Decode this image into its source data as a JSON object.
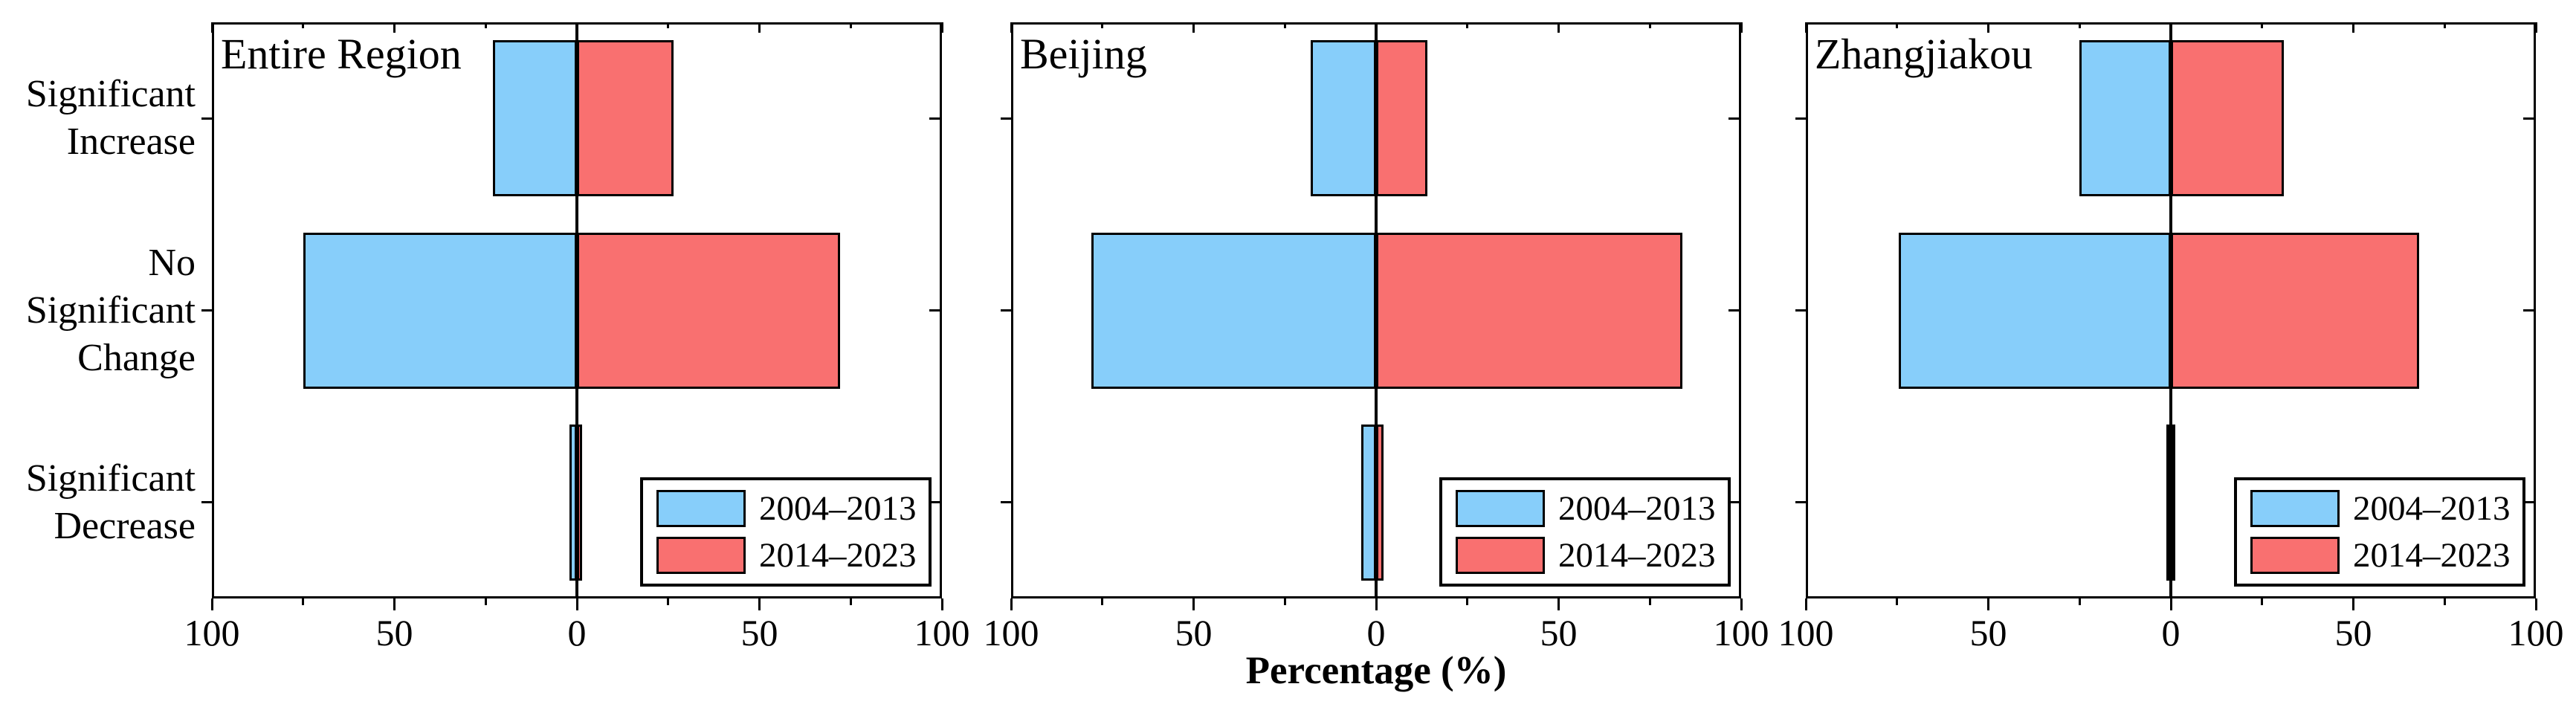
{
  "figure": {
    "background_color": "#FFFFFF"
  },
  "chart_data": {
    "type": "bar",
    "orientation": "horizontal-diverging",
    "title": "",
    "xlabel": "Percentage (%)",
    "ylabel": "",
    "categories": [
      "Significant Increase",
      "No Significant Change",
      "Significant Decrease"
    ],
    "x_axis": {
      "tick_labels": [
        "100",
        "50",
        "0",
        "50",
        "100"
      ],
      "tick_values": [
        -100,
        -50,
        0,
        50,
        100
      ],
      "minor_tick_interval": 25,
      "left_range": 100,
      "right_range": 100,
      "grid": "off"
    },
    "series_meta": [
      {
        "name": "2004–2013",
        "color": "#87CEFA",
        "direction": "left"
      },
      {
        "name": "2014–2023",
        "color": "#F97070",
        "direction": "right"
      }
    ],
    "panels": [
      {
        "title": "Entire Region",
        "series": [
          {
            "name": "2004–2013",
            "values": [
              23,
              75,
              2
            ]
          },
          {
            "name": "2014–2023",
            "values": [
              26.5,
              72,
              1.5
            ]
          }
        ]
      },
      {
        "title": "Beijing",
        "series": [
          {
            "name": "2004–2013",
            "values": [
              18,
              78,
              4
            ]
          },
          {
            "name": "2014–2023",
            "values": [
              14,
              84,
              2
            ]
          }
        ]
      },
      {
        "title": "Zhangjiakou",
        "series": [
          {
            "name": "2004–2013",
            "values": [
              25,
              74.5,
              0.5
            ]
          },
          {
            "name": "2014–2023",
            "values": [
              31,
              68,
              1
            ]
          }
        ]
      }
    ],
    "legend": {
      "position": "lower right",
      "entries": [
        "2004–2013",
        "2014–2023"
      ]
    },
    "colors": {
      "bar_2004_2013": "#87CEFA",
      "bar_2014_2023": "#F97070",
      "axis": "#000000",
      "text": "#000000",
      "background": "#FFFFFF"
    }
  }
}
